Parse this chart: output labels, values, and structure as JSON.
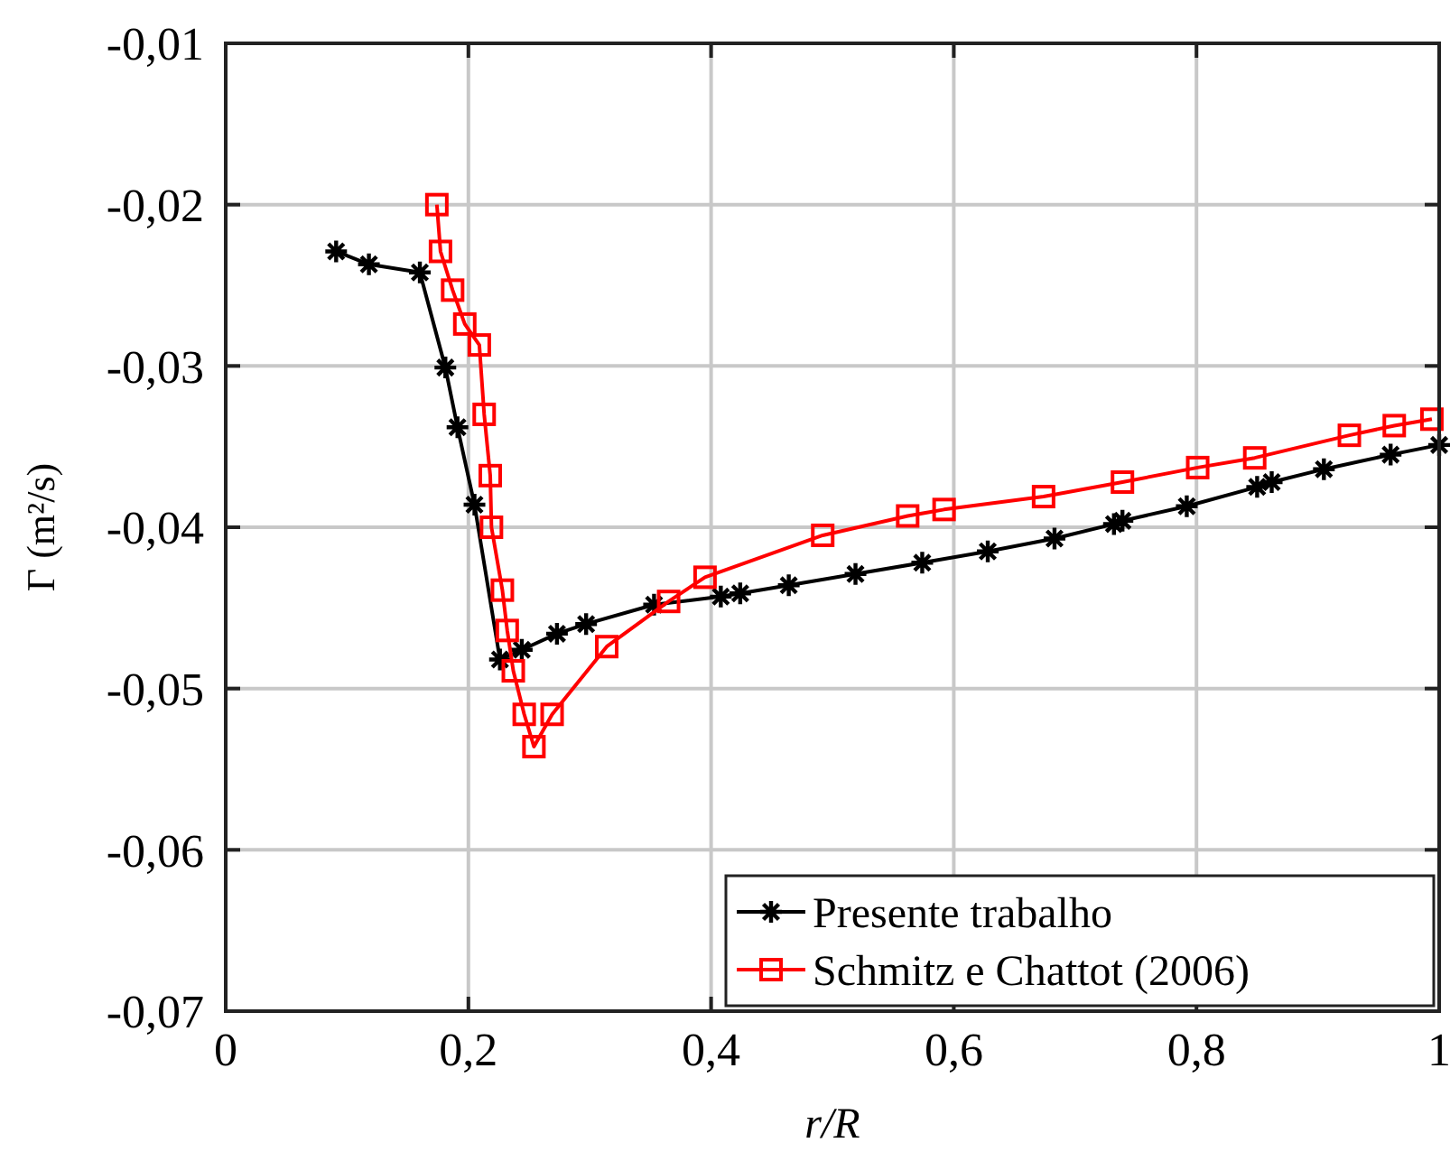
{
  "chart_data": {
    "type": "line",
    "xlabel": "r/R",
    "ylabel": "Γ (m²/s)",
    "xlim": [
      0,
      1
    ],
    "ylim": [
      -0.07,
      -0.01
    ],
    "xticks": [
      0,
      {
        "value": 0.2,
        "label": "0,2"
      },
      {
        "value": 0.4,
        "label": "0,4"
      },
      {
        "value": 0.6,
        "label": "0,6"
      },
      {
        "value": 0.8,
        "label": "0,8"
      },
      1
    ],
    "yticks": [
      {
        "value": -0.07,
        "label": "-0,07"
      },
      {
        "value": -0.06,
        "label": "-0,06"
      },
      {
        "value": -0.05,
        "label": "-0,05"
      },
      {
        "value": -0.04,
        "label": "-0,04"
      },
      {
        "value": -0.03,
        "label": "-0,03"
      },
      {
        "value": -0.02,
        "label": "-0,02"
      },
      {
        "value": -0.01,
        "label": "-0,01"
      }
    ],
    "grid": true,
    "legend": "bottom right",
    "line_style": "solid",
    "series": [
      {
        "name": "Presente trabalho",
        "color": "#000000",
        "marker": "cross",
        "x": [
          0.091,
          0.118,
          0.16,
          0.181,
          0.191,
          0.205,
          0.226,
          0.244,
          0.273,
          0.297,
          0.353,
          0.408,
          0.424,
          0.464,
          0.519,
          0.574,
          0.628,
          0.683,
          0.732,
          0.739,
          0.792,
          0.85,
          0.862,
          0.905,
          0.96,
          1.0
        ],
        "values": [
          -0.0229,
          -0.0237,
          -0.0242,
          -0.0301,
          -0.0338,
          -0.0386,
          -0.0482,
          -0.0476,
          -0.0466,
          -0.046,
          -0.0448,
          -0.0443,
          -0.0441,
          -0.0436,
          -0.0429,
          -0.0422,
          -0.0415,
          -0.0407,
          -0.0398,
          -0.0396,
          -0.0387,
          -0.0375,
          -0.0372,
          -0.0364,
          -0.0355,
          -0.0349
        ]
      },
      {
        "name": "Schmitz e Chattot (2006)",
        "color": "#ff0000",
        "marker": "square",
        "x": [
          0.174,
          0.177,
          0.187,
          0.197,
          0.209,
          0.213,
          0.218,
          0.219,
          0.228,
          0.232,
          0.237,
          0.246,
          0.254,
          0.269,
          0.314,
          0.365,
          0.395,
          0.492,
          0.562,
          0.592,
          0.674,
          0.739,
          0.801,
          0.848,
          0.926,
          0.963,
          0.994
        ],
        "values": [
          -0.02,
          -0.0229,
          -0.0253,
          -0.0274,
          -0.0287,
          -0.033,
          -0.0368,
          -0.04,
          -0.0439,
          -0.0464,
          -0.0489,
          -0.0516,
          -0.0536,
          -0.0516,
          -0.0474,
          -0.0446,
          -0.0431,
          -0.0405,
          -0.0393,
          -0.0389,
          -0.0381,
          -0.0372,
          -0.0363,
          -0.0357,
          -0.0343,
          -0.0337,
          -0.0333
        ]
      }
    ]
  }
}
